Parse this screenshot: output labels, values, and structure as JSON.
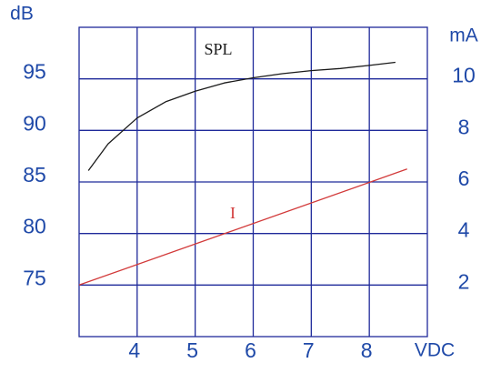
{
  "chart_data": {
    "type": "line",
    "y_label": "dB",
    "y2_label": "mA",
    "x_label": "VDC",
    "xlim": [
      3,
      9
    ],
    "xticks": [
      4,
      5,
      6,
      7,
      8
    ],
    "ylim": [
      70,
      100
    ],
    "yticks": [
      75,
      80,
      85,
      90,
      95
    ],
    "y2lim": [
      0,
      12
    ],
    "y2ticks": [
      2,
      4,
      6,
      8,
      10
    ],
    "grid": true,
    "series": [
      {
        "name": "SPL",
        "color": "#1a1a1a",
        "x": [
          3.16,
          3.5,
          4,
          4.5,
          5,
          5.5,
          6,
          6.5,
          7,
          7.5,
          8,
          8.45
        ],
        "values": [
          86.1,
          88.7,
          91.2,
          92.8,
          93.8,
          94.6,
          95.1,
          95.5,
          95.8,
          96.0,
          96.3,
          96.6
        ]
      },
      {
        "name": "I",
        "color": "#d23a3a",
        "axis": "y2",
        "x": [
          3,
          8.65
        ],
        "values": [
          2,
          6.5
        ]
      }
    ]
  }
}
